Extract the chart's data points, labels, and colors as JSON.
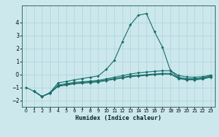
{
  "xlabel": "Humidex (Indice chaleur)",
  "background_color": "#cce8ed",
  "grid_color": "#aad0d8",
  "line_color": "#1a6e6a",
  "xlim": [
    -0.5,
    23.5
  ],
  "ylim": [
    -2.5,
    5.3
  ],
  "yticks": [
    -2,
    -1,
    0,
    1,
    2,
    3,
    4
  ],
  "xticks": [
    0,
    1,
    2,
    3,
    4,
    5,
    6,
    7,
    8,
    9,
    10,
    11,
    12,
    13,
    14,
    15,
    16,
    17,
    18,
    19,
    20,
    21,
    22,
    23
  ],
  "series": [
    {
      "x": [
        0,
        1,
        2,
        3,
        4,
        5,
        6,
        7,
        8,
        9,
        10,
        11,
        12,
        13,
        14,
        15,
        16,
        17,
        18,
        19,
        20,
        21,
        22,
        23
      ],
      "y": [
        -1.0,
        -1.3,
        -1.7,
        -1.4,
        -0.65,
        -0.55,
        -0.42,
        -0.32,
        -0.22,
        -0.12,
        0.38,
        1.08,
        2.5,
        3.8,
        4.55,
        4.68,
        3.3,
        2.1,
        0.28,
        -0.08,
        -0.2,
        -0.22,
        -0.18,
        -0.05
      ]
    },
    {
      "x": [
        1,
        2,
        3,
        4,
        5,
        6,
        7,
        8,
        9,
        10,
        11,
        12,
        13,
        14,
        15,
        16,
        17,
        18,
        19,
        20,
        21,
        22,
        23
      ],
      "y": [
        -1.3,
        -1.7,
        -1.42,
        -0.82,
        -0.72,
        -0.62,
        -0.57,
        -0.52,
        -0.47,
        -0.35,
        -0.22,
        -0.1,
        0.02,
        0.12,
        0.18,
        0.23,
        0.28,
        0.28,
        -0.24,
        -0.33,
        -0.33,
        -0.27,
        -0.12
      ]
    },
    {
      "x": [
        1,
        2,
        3,
        4,
        5,
        6,
        7,
        8,
        9,
        10,
        11,
        12,
        13,
        14,
        15,
        16,
        17,
        18,
        19,
        20,
        21,
        22,
        23
      ],
      "y": [
        -1.3,
        -1.7,
        -1.44,
        -0.87,
        -0.78,
        -0.68,
        -0.63,
        -0.58,
        -0.53,
        -0.43,
        -0.32,
        -0.22,
        -0.12,
        -0.07,
        -0.02,
        0.03,
        0.07,
        0.07,
        -0.28,
        -0.38,
        -0.38,
        -0.32,
        -0.17
      ]
    },
    {
      "x": [
        1,
        2,
        3,
        4,
        5,
        6,
        7,
        8,
        9,
        10,
        11,
        12,
        13,
        14,
        15,
        16,
        17,
        18,
        19,
        20,
        21,
        22,
        23
      ],
      "y": [
        -1.3,
        -1.7,
        -1.45,
        -0.92,
        -0.83,
        -0.73,
        -0.68,
        -0.63,
        -0.58,
        -0.48,
        -0.38,
        -0.28,
        -0.18,
        -0.13,
        -0.08,
        -0.03,
        0.02,
        0.02,
        -0.32,
        -0.42,
        -0.42,
        -0.36,
        -0.21
      ]
    }
  ]
}
